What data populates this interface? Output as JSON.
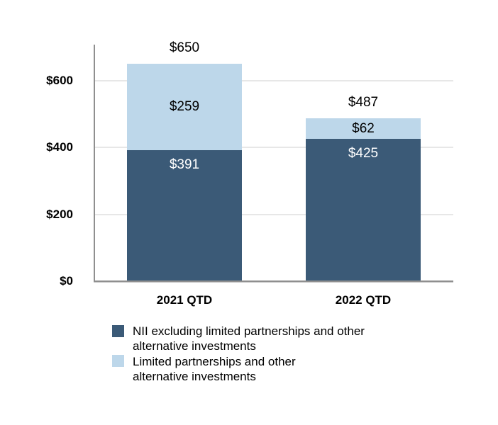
{
  "chart_data": {
    "type": "bar",
    "stacked": true,
    "orientation": "vertical",
    "categories": [
      "2021 QTD",
      "2022 QTD"
    ],
    "series": [
      {
        "name": "NII excluding limited partnerships and other alternative investments",
        "color": "#3B5A77",
        "label_color": "#FFFFFF",
        "values": [
          391,
          425
        ],
        "value_labels": [
          "$391",
          "$425"
        ]
      },
      {
        "name": "Limited partnerships and other alternative investments",
        "color": "#BDD7EA",
        "label_color": "#000000",
        "values": [
          259,
          62
        ],
        "value_labels": [
          "$259",
          "$62"
        ]
      }
    ],
    "totals": {
      "values": [
        650,
        487
      ],
      "labels": [
        "$650",
        "$487"
      ]
    },
    "y_axis": {
      "ticks": [
        {
          "value": 600,
          "label": "$600"
        },
        {
          "value": 400,
          "label": "$400"
        },
        {
          "value": 200,
          "label": "$200"
        },
        {
          "value": 0,
          "label": "$0"
        }
      ],
      "gridline_values": [
        600,
        400,
        200
      ],
      "ylim": [
        0,
        700
      ]
    },
    "grid": "horizontal",
    "legend_position": "bottom-left",
    "title": "",
    "xlabel": "",
    "ylabel": ""
  },
  "legend": {
    "entries": [
      {
        "swatch": "dark-blue",
        "lines": [
          "NII excluding limited partnerships and other",
          "alternative investments"
        ]
      },
      {
        "swatch": "light-blue",
        "lines": [
          "Limited partnerships and other",
          "alternative investments"
        ]
      }
    ]
  },
  "colors": {
    "axis_line": "#8F8F8F",
    "axis_shadow": "#C4C4C4",
    "gridline": "#E7E7E7",
    "text": "#000000"
  }
}
